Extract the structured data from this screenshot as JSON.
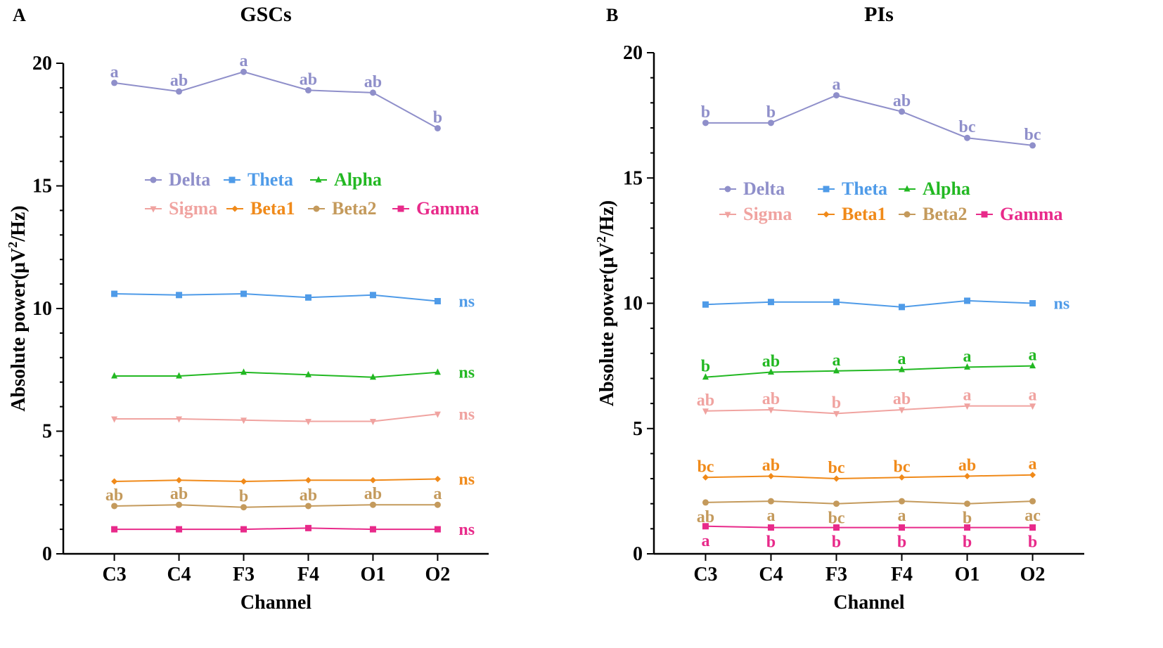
{
  "chart_data": [
    {
      "type": "line",
      "panel_label": "A",
      "title": "GSCs",
      "xlabel": "Channel",
      "ylabel": "Absolute power(μV²/Hz)",
      "ylabel_parts": {
        "pre": "Absolute power(μV",
        "sup": "2",
        "post": "/Hz)"
      },
      "ylim": [
        0,
        20
      ],
      "yticks": [
        "0",
        "5",
        "10",
        "15",
        "20"
      ],
      "categories": [
        "C3",
        "C4",
        "F3",
        "F4",
        "O1",
        "O2"
      ],
      "legend_position": "center",
      "series": [
        {
          "name": "Delta",
          "color": "#8f8fca",
          "marker": "circle",
          "values": [
            19.2,
            18.85,
            19.65,
            18.9,
            18.8,
            17.35
          ],
          "letters": [
            "a",
            "ab",
            "a",
            "ab",
            "ab",
            "b"
          ],
          "letter_pos": "above"
        },
        {
          "name": "Theta",
          "color": "#4f9be8",
          "marker": "square",
          "values": [
            10.6,
            10.55,
            10.6,
            10.45,
            10.55,
            10.3
          ],
          "end_label": "ns"
        },
        {
          "name": "Alpha",
          "color": "#22b822",
          "marker": "triangle",
          "values": [
            7.25,
            7.25,
            7.4,
            7.3,
            7.2,
            7.4
          ],
          "end_label": "ns"
        },
        {
          "name": "Sigma",
          "color": "#f0a3a0",
          "marker": "triangle-down",
          "values": [
            5.5,
            5.5,
            5.45,
            5.4,
            5.4,
            5.7
          ],
          "end_label": "ns"
        },
        {
          "name": "Beta1",
          "color": "#f08a1a",
          "marker": "diamond",
          "values": [
            2.95,
            3.0,
            2.95,
            3.0,
            3.0,
            3.05
          ],
          "end_label": "ns"
        },
        {
          "name": "Beta2",
          "color": "#c49a5c",
          "marker": "circle",
          "values": [
            1.95,
            2.0,
            1.9,
            1.95,
            2.0,
            2.0
          ],
          "letters": [
            "ab",
            "ab",
            "b",
            "ab",
            "ab",
            "a"
          ],
          "letter_pos": "above"
        },
        {
          "name": "Gamma",
          "color": "#e82a8a",
          "marker": "square",
          "values": [
            1.0,
            1.0,
            1.0,
            1.05,
            1.0,
            1.0
          ],
          "end_label": "ns"
        }
      ]
    },
    {
      "type": "line",
      "panel_label": "B",
      "title": "PIs",
      "xlabel": "Channel",
      "ylabel": "Absolute power(μV²/Hz)",
      "ylabel_parts": {
        "pre": "Absolute power(μV",
        "sup": "2",
        "post": "/Hz)"
      },
      "ylim": [
        0,
        20
      ],
      "yticks": [
        "0",
        "5",
        "10",
        "15",
        "20"
      ],
      "categories": [
        "C3",
        "C4",
        "F3",
        "F4",
        "O1",
        "O2"
      ],
      "legend_position": "center",
      "series": [
        {
          "name": "Delta",
          "color": "#8f8fca",
          "marker": "circle",
          "values": [
            17.2,
            17.2,
            18.3,
            17.65,
            16.6,
            16.3
          ],
          "letters": [
            "b",
            "b",
            "a",
            "ab",
            "bc",
            "bc"
          ],
          "letter_pos": "above"
        },
        {
          "name": "Theta",
          "color": "#4f9be8",
          "marker": "square",
          "values": [
            9.95,
            10.05,
            10.05,
            9.85,
            10.1,
            10.0
          ],
          "end_label": "ns"
        },
        {
          "name": "Alpha",
          "color": "#22b822",
          "marker": "triangle",
          "values": [
            7.05,
            7.25,
            7.3,
            7.35,
            7.45,
            7.5
          ],
          "letters": [
            "b",
            "ab",
            "a",
            "a",
            "a",
            "a"
          ],
          "letter_pos": "above"
        },
        {
          "name": "Sigma",
          "color": "#f0a3a0",
          "marker": "triangle-down",
          "values": [
            5.7,
            5.75,
            5.6,
            5.75,
            5.9,
            5.9
          ],
          "letters": [
            "ab",
            "ab",
            "b",
            "ab",
            "a",
            "a"
          ],
          "letter_pos": "above"
        },
        {
          "name": "Beta1",
          "color": "#f08a1a",
          "marker": "diamond",
          "values": [
            3.05,
            3.1,
            3.0,
            3.05,
            3.1,
            3.15
          ],
          "letters": [
            "bc",
            "ab",
            "bc",
            "bc",
            "ab",
            "a"
          ],
          "letter_pos": "above"
        },
        {
          "name": "Beta2",
          "color": "#c49a5c",
          "marker": "circle",
          "values": [
            2.05,
            2.1,
            2.0,
            2.1,
            2.0,
            2.1
          ],
          "letters": [
            "ab",
            "a",
            "bc",
            "a",
            "b",
            "ac"
          ],
          "letter_pos": "below"
        },
        {
          "name": "Gamma",
          "color": "#e82a8a",
          "marker": "square",
          "values": [
            1.1,
            1.05,
            1.05,
            1.05,
            1.05,
            1.05
          ],
          "letters": [
            "a",
            "b",
            "b",
            "b",
            "b",
            "b"
          ],
          "letter_pos": "below"
        }
      ]
    }
  ]
}
